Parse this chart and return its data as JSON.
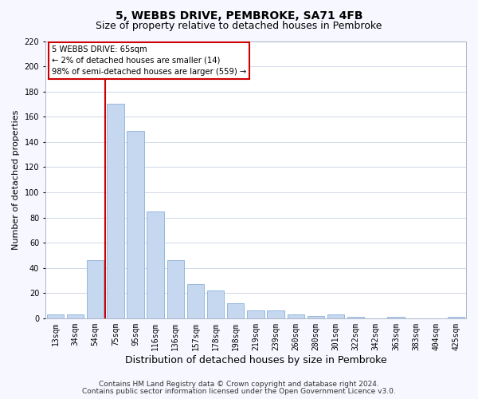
{
  "title": "5, WEBBS DRIVE, PEMBROKE, SA71 4FB",
  "subtitle": "Size of property relative to detached houses in Pembroke",
  "xlabel": "Distribution of detached houses by size in Pembroke",
  "ylabel": "Number of detached properties",
  "bar_labels": [
    "13sqm",
    "34sqm",
    "54sqm",
    "75sqm",
    "95sqm",
    "116sqm",
    "136sqm",
    "157sqm",
    "178sqm",
    "198sqm",
    "219sqm",
    "239sqm",
    "260sqm",
    "280sqm",
    "301sqm",
    "322sqm",
    "342sqm",
    "363sqm",
    "383sqm",
    "404sqm",
    "425sqm"
  ],
  "bar_values": [
    3,
    3,
    46,
    170,
    149,
    85,
    46,
    27,
    22,
    12,
    6,
    6,
    3,
    2,
    3,
    1,
    0,
    1,
    0,
    0,
    1
  ],
  "bar_color": "#c5d8f0",
  "bar_edge_color": "#8ab0d8",
  "vline_color": "#cc0000",
  "vline_x_index": 2.5,
  "ylim": [
    0,
    220
  ],
  "yticks": [
    0,
    20,
    40,
    60,
    80,
    100,
    120,
    140,
    160,
    180,
    200,
    220
  ],
  "annotation_title": "5 WEBBS DRIVE: 65sqm",
  "annotation_line1": "← 2% of detached houses are smaller (14)",
  "annotation_line2": "98% of semi-detached houses are larger (559) →",
  "footnote1": "Contains HM Land Registry data © Crown copyright and database right 2024.",
  "footnote2": "Contains public sector information licensed under the Open Government Licence v3.0.",
  "bg_color": "#f7f8ff",
  "plot_bg_color": "#ffffff",
  "grid_color": "#d0d8e8",
  "title_fontsize": 10,
  "subtitle_fontsize": 9,
  "xlabel_fontsize": 9,
  "ylabel_fontsize": 8,
  "tick_fontsize": 7,
  "footnote_fontsize": 6.5
}
